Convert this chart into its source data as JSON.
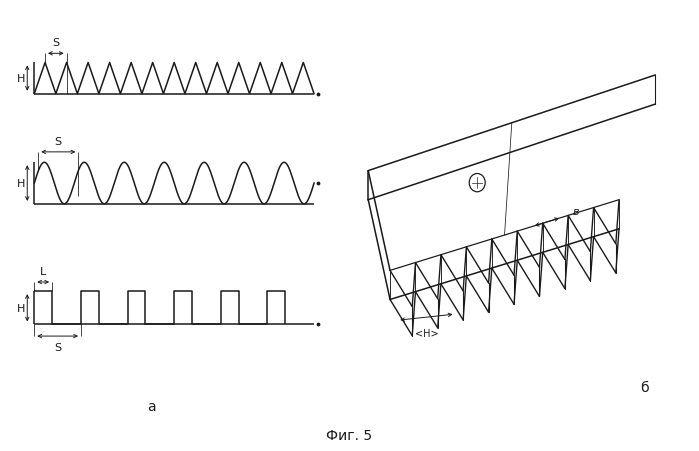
{
  "fig_label": "Фиг. 5",
  "label_a": "а",
  "label_b": "б",
  "bg_color": "#ffffff",
  "line_color": "#1a1a1a",
  "linewidth": 1.1,
  "thin_lw": 0.7,
  "annotation_fontsize": 8,
  "label_fontsize": 10,
  "caption_fontsize": 10,
  "zigzag_n": 13,
  "sine_n": 7,
  "square_n": 6,
  "square_duty": 0.38
}
